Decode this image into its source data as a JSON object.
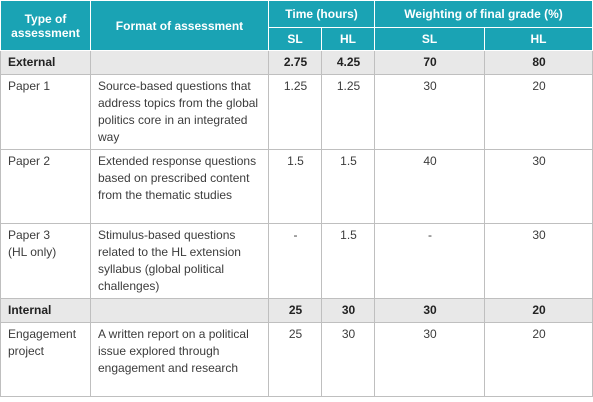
{
  "header": {
    "type_of_assessment": "Type of assessment",
    "format_of_assessment": "Format of assessment",
    "time_hours": "Time (hours)",
    "weighting": "Weighting of final grade (%)",
    "sl": "SL",
    "hl": "HL"
  },
  "rows": [
    {
      "type": "External",
      "format": "",
      "time_sl": "2.75",
      "time_hl": "4.25",
      "weight_sl": "70",
      "weight_hl": "80"
    },
    {
      "type": "Paper 1",
      "format": "Source-based questions that address topics from the global politics core in an integrated way",
      "time_sl": "1.25",
      "time_hl": "1.25",
      "weight_sl": "30",
      "weight_hl": "20"
    },
    {
      "type": "Paper 2",
      "format": "Extended response questions based on prescribed content from the thematic studies",
      "time_sl": "1.5",
      "time_hl": "1.5",
      "weight_sl": "40",
      "weight_hl": "30"
    },
    {
      "type": "Paper 3",
      "type_note": "(HL only)",
      "format": "Stimulus-based questions related to the HL extension syllabus (global political challenges)",
      "time_sl": "-",
      "time_hl": "1.5",
      "weight_sl": "-",
      "weight_hl": "30"
    },
    {
      "type": "Internal",
      "format": "",
      "time_sl": "25",
      "time_hl": "30",
      "weight_sl": "30",
      "weight_hl": "20"
    },
    {
      "type": "Engagement project",
      "format": "A written report on a political issue explored through engagement and research",
      "time_sl": "25",
      "time_hl": "30",
      "weight_sl": "30",
      "weight_hl": "20"
    }
  ]
}
